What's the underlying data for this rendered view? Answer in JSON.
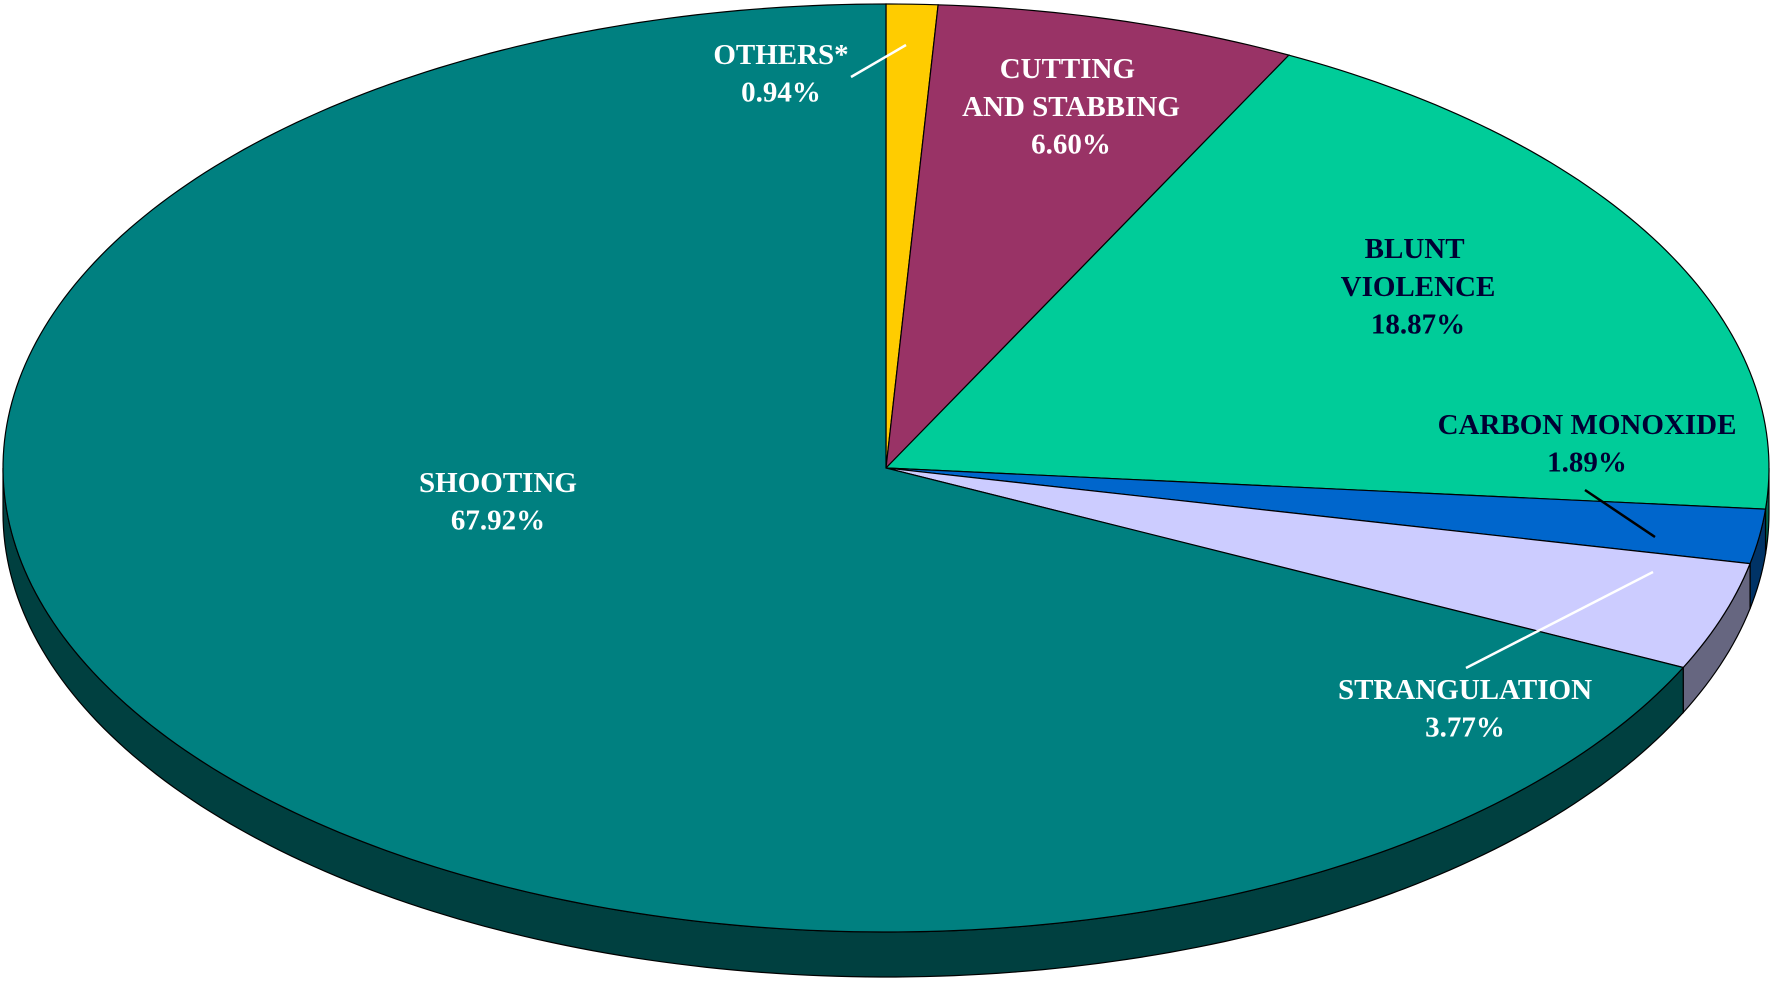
{
  "chart_data": {
    "type": "pie",
    "categories": [
      "OTHERS*",
      "CUTTING AND STABBING",
      "BLUNT VIOLENCE",
      "CARBON MONOXIDE",
      "STRANGULATION",
      "SHOOTING"
    ],
    "values": [
      0.94,
      6.6,
      18.87,
      1.89,
      3.77,
      67.92
    ],
    "value_labels": [
      "0.94%",
      "6.60%",
      "18.87%",
      "1.89%",
      "3.77%",
      "67.92%"
    ],
    "colors": [
      "#ffcc00",
      "#993366",
      "#00cc99",
      "#0066cc",
      "#ccccff",
      "#008080"
    ]
  }
}
